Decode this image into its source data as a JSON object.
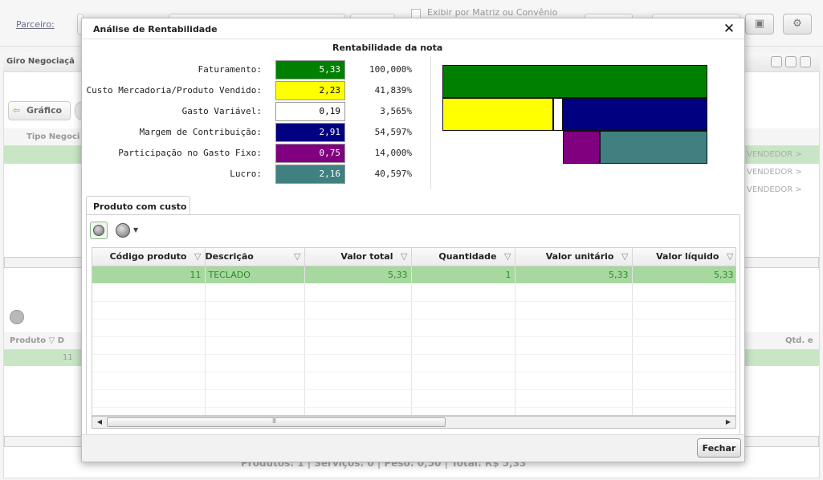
{
  "background": {
    "partner_label": "Parceiro:",
    "show_matrix_label": "Exibir por Matriz ou Convênio",
    "panel_title": "Giro Negociaçã",
    "chart_button_label": "Gráfico",
    "negotiation_type_header": "Tipo Negoci",
    "seller_tags": [
      "VENDEDOR >",
      "VENDEDOR >",
      "VENDEDOR >"
    ],
    "product_header": "Produto",
    "product_col2_initial": "D",
    "qty_header": "Qtd. e",
    "product_row_code": "11",
    "footer_summary": "Produtos: 1  |  Serviços: 0  |  Peso: 0,50  |  Total: R$ 5,33"
  },
  "modal": {
    "title": "Análise de Rentabilidade",
    "close_glyph": "✕",
    "summary_title": "Rentabilidade da nota",
    "metrics": [
      {
        "label": "Faturamento:",
        "value": "5,33",
        "percent": "100,000%",
        "color": "#008000",
        "text_color": "#ffffff"
      },
      {
        "label": "Custo Mercadoria/Produto Vendido:",
        "value": "2,23",
        "percent": "41,839%",
        "color": "#ffff00",
        "text_color": "#000000"
      },
      {
        "label": "Gasto Variável:",
        "value": "0,19",
        "percent": "3,565%",
        "color": "#ffffff",
        "text_color": "#000000"
      },
      {
        "label": "Margem de Contribuição:",
        "value": "2,91",
        "percent": "54,597%",
        "color": "#000080",
        "text_color": "#ffffff"
      },
      {
        "label": "Participação no Gasto Fixo:",
        "value": "0,75",
        "percent": "14,000%",
        "color": "#800080",
        "text_color": "#ffffff"
      },
      {
        "label": "Lucro:",
        "value": "2,16",
        "percent": "40,597%",
        "color": "#408080",
        "text_color": "#ffffff"
      }
    ],
    "tab_label": "Produto com custo",
    "grid": {
      "columns": [
        "Código produto",
        "Descrição",
        "Valor total",
        "Quantidade",
        "Valor unitário",
        "Valor líquido"
      ],
      "rows": [
        [
          "11",
          "TECLADO",
          "5,33",
          "1",
          "5,33",
          "5,33"
        ]
      ]
    },
    "scroll_thumb_grip": "III",
    "close_button_label": "Fechar"
  },
  "chart_data": {
    "type": "bar",
    "title": "",
    "series": [
      {
        "name": "Faturamento",
        "values": [
          100.0
        ]
      },
      {
        "name": "Custo Mercadoria/Produto Vendido",
        "values": [
          41.839
        ]
      },
      {
        "name": "Gasto Variável",
        "values": [
          3.565
        ]
      },
      {
        "name": "Margem de Contribuição",
        "values": [
          54.597
        ]
      },
      {
        "name": "Participação no Gasto Fixo",
        "values": [
          14.0
        ]
      },
      {
        "name": "Lucro",
        "values": [
          40.597
        ]
      }
    ]
  }
}
